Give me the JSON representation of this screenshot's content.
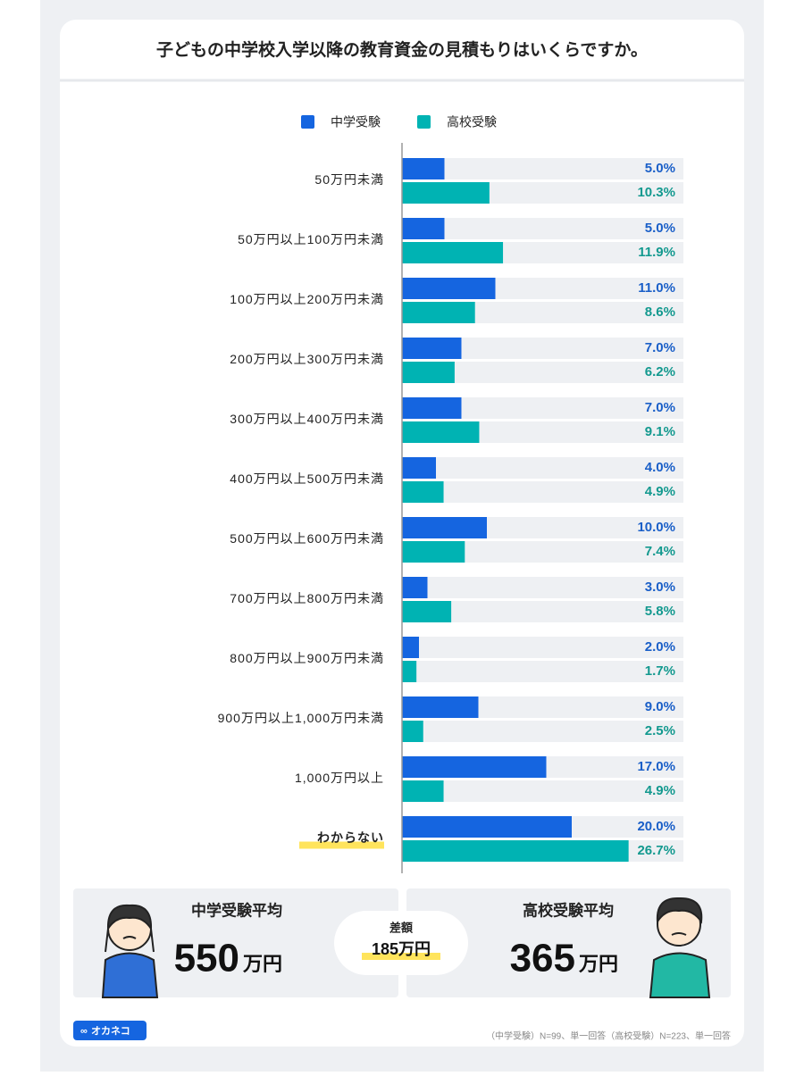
{
  "chart_data": {
    "type": "bar",
    "orientation": "horizontal",
    "title": "子どもの中学校入学以降の教育資金の見積もりはいくらですか。",
    "categories": [
      "50万円未満",
      "50万円以上100万円未満",
      "100万円以上200万円未満",
      "200万円以上300万円未満",
      "300万円以上400万円未満",
      "400万円以上500万円未満",
      "500万円以上600万円未満",
      "700万円以上800万円未満",
      "800万円以上900万円未満",
      "900万円以上1,000万円未満",
      "1,000万円以上",
      "わからない"
    ],
    "series": [
      {
        "name": "中学受験",
        "color": "#1565e0",
        "label_color": "#1a5fc8",
        "values": [
          5.0,
          5.0,
          11.0,
          7.0,
          7.0,
          4.0,
          10.0,
          3.0,
          2.0,
          9.0,
          17.0,
          20.0
        ],
        "value_labels": [
          "5.0%",
          "5.0%",
          "11.0%",
          "7.0%",
          "7.0%",
          "4.0%",
          "10.0%",
          "3.0%",
          "2.0%",
          "9.0%",
          "17.0%",
          "20.0%"
        ]
      },
      {
        "name": "高校受験",
        "color": "#00b3b3",
        "label_color": "#13998f",
        "values": [
          10.3,
          11.9,
          8.6,
          6.2,
          9.1,
          4.9,
          7.4,
          5.8,
          1.7,
          2.5,
          4.9,
          26.7
        ],
        "value_labels": [
          "10.3%",
          "11.9%",
          "8.6%",
          "6.2%",
          "9.1%",
          "4.9%",
          "7.4%",
          "5.8%",
          "1.7%",
          "2.5%",
          "4.9%",
          "26.7%"
        ]
      }
    ]
  },
  "summary": {
    "left": {
      "label": "中学受験平均",
      "amount": "550",
      "unit": "万円"
    },
    "right": {
      "label": "高校受験平均",
      "amount": "365",
      "unit": "万円"
    },
    "difference": {
      "label": "差額",
      "amount": "185万円"
    }
  },
  "footer": {
    "logo": "オカネコ",
    "note": "（中学受験）N=99、単一回答（高校受験）N=223、単一回答"
  }
}
